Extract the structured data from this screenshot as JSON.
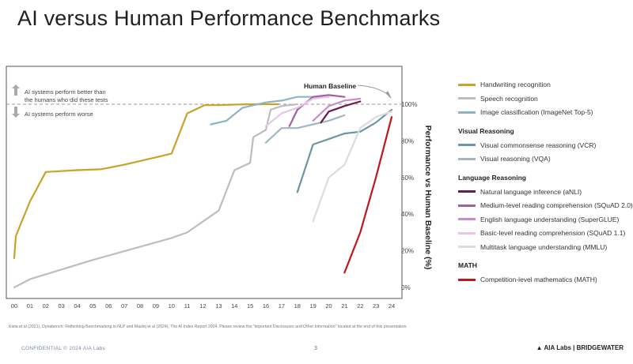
{
  "page": {
    "title": "AI versus Human Performance Benchmarks",
    "source_note": "Kiela et al (2021), Dynabench: Rethinking Benchmarking in NLP and Maslej et al (2024), The AI Index Report 2024. Please review the \"Important Disclosures and Other Information\" located at the end of this presentation.",
    "footer_confidential": "CONFIDENTIAL © 2024 AIA Labs",
    "page_number": "3",
    "brand": "AIA Labs | BRIDGEWATER"
  },
  "chart_data": {
    "type": "line",
    "title": "AI versus Human Performance Benchmarks",
    "ylabel": "Performance vs Human Baseline (%)",
    "xlabel": "",
    "ylim": [
      0,
      115
    ],
    "xlim": [
      -0.3,
      24
    ],
    "x_ticks": [
      0,
      1,
      2,
      3,
      4,
      5,
      6,
      7,
      8,
      9,
      10,
      11,
      12,
      13,
      14,
      15,
      16,
      17,
      18,
      19,
      20,
      21,
      22,
      23,
      24
    ],
    "x_tick_labels": [
      "00",
      "01",
      "02",
      "03",
      "04",
      "05",
      "06",
      "07",
      "08",
      "09",
      "10",
      "11",
      "12",
      "13",
      "14",
      "15",
      "16",
      "17",
      "18",
      "19",
      "20",
      "21",
      "22",
      "23",
      "24"
    ],
    "y_ticks": [
      0,
      20,
      40,
      60,
      80,
      100
    ],
    "y_tick_labels": [
      "0%",
      "20%",
      "40%",
      "60%",
      "80%",
      "100%"
    ],
    "baseline": 100,
    "baseline_label": "Human Baseline",
    "annotations": {
      "better": "AI systems perform better than the humans who did these tests",
      "worse": "AI systems perform worse"
    },
    "legend_groups": [
      {
        "heading": "",
        "names": [
          "Handwriting recognition",
          "Speech recognition",
          "Image classification (ImageNet Top-5)"
        ]
      },
      {
        "heading": "Visual Reasoning",
        "names": [
          "Visual commonsense reasoning (VCR)",
          "Visual reasoning (VQA)"
        ]
      },
      {
        "heading": "Language Reasoning",
        "names": [
          "Natural language inference (aNLI)",
          "Medium-level reading comprehension (SQuAD 2.0)",
          "English language understanding (SuperGLUE)",
          "Basic-level reading comprehension (SQuAD 1.1)",
          "Multitask language understanding (MMLU)"
        ]
      },
      {
        "heading": "MATH",
        "names": [
          "Competition-level mathematics (MATH)"
        ]
      }
    ],
    "series": [
      {
        "name": "Handwriting recognition",
        "color": "#c9a227",
        "x": [
          0,
          0.1,
          1,
          2,
          4,
          5.5,
          7,
          9,
          10,
          11,
          12.1,
          13,
          14,
          15,
          16,
          16.8
        ],
        "y": [
          16,
          28,
          47,
          63,
          64,
          64.5,
          67,
          71,
          73,
          95,
          99.5,
          99.5,
          99.8,
          100,
          100,
          100
        ]
      },
      {
        "name": "Speech recognition",
        "color": "#bdbdbd",
        "x": [
          0,
          1,
          5,
          10,
          11,
          13,
          14,
          15,
          15.2,
          16,
          16.3,
          17,
          18
        ],
        "y": [
          0,
          4.5,
          15,
          27,
          30,
          42,
          64,
          68,
          82,
          86,
          97,
          99,
          100
        ]
      },
      {
        "name": "Image classification (ImageNet Top-5)",
        "color": "#8fb3c5",
        "x": [
          12.5,
          13.5,
          14.5,
          16,
          17,
          18,
          19.5
        ],
        "y": [
          89,
          91,
          98,
          101,
          102,
          104,
          104
        ]
      },
      {
        "name": "Visual commonsense reasoning (VCR)",
        "color": "#6e94a6",
        "x": [
          18,
          19,
          20,
          21,
          22,
          23,
          24
        ],
        "y": [
          52,
          78,
          81,
          84,
          85,
          90,
          97
        ]
      },
      {
        "name": "Visual reasoning (VQA)",
        "color": "#9fb8c6",
        "x": [
          16,
          17,
          18,
          19,
          20,
          21
        ],
        "y": [
          79,
          87,
          87,
          89,
          91,
          94
        ]
      },
      {
        "name": "Natural language inference (aNLI)",
        "color": "#6a1b4d",
        "x": [
          19.5,
          20,
          21,
          22
        ],
        "y": [
          90,
          96,
          99,
          101.5
        ]
      },
      {
        "name": "Medium-level reading comprehension (SQuAD 2.0)",
        "color": "#a45fa0",
        "x": [
          17.5,
          18,
          19,
          20,
          21
        ],
        "y": [
          88,
          97,
          104,
          105,
          104
        ]
      },
      {
        "name": "English language understanding (SuperGLUE)",
        "color": "#c98ec8",
        "x": [
          19,
          20,
          21,
          22
        ],
        "y": [
          91,
          99,
          102,
          103
        ]
      },
      {
        "name": "Basic-level reading comprehension (SQuAD 1.1)",
        "color": "#e7c6e7",
        "x": [
          16,
          17,
          18,
          19,
          20
        ],
        "y": [
          88,
          95,
          98,
          103,
          104
        ]
      },
      {
        "name": "Multitask language understanding (MMLU)",
        "color": "#dcdcdc",
        "x": [
          19,
          20,
          21,
          22,
          23,
          24
        ],
        "y": [
          36,
          60,
          67,
          87,
          93,
          96
        ]
      },
      {
        "name": "Competition-level mathematics (MATH)",
        "color": "#c0171d",
        "x": [
          21,
          22,
          23,
          24
        ],
        "y": [
          8,
          30,
          60,
          93
        ]
      }
    ]
  }
}
